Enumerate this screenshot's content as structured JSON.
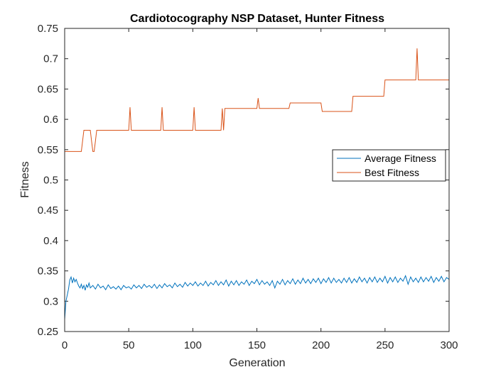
{
  "chart_data": {
    "type": "line",
    "title": "Cardiotocography NSP Dataset, Hunter Fitness",
    "xlabel": "Generation",
    "ylabel": "Fitness",
    "xlim": [
      0,
      300
    ],
    "ylim": [
      0.25,
      0.75
    ],
    "xticks": [
      "0",
      "50",
      "100",
      "150",
      "200",
      "250",
      "300"
    ],
    "yticks": [
      "0.25",
      "0.3",
      "0.35",
      "0.4",
      "0.45",
      "0.5",
      "0.55",
      "0.6",
      "0.65",
      "0.7",
      "0.75"
    ],
    "grid": false,
    "legend_position": "right",
    "series": [
      {
        "name": "Average Fitness",
        "color": "#0072BD",
        "points": [
          [
            0,
            0.27
          ],
          [
            1,
            0.3
          ],
          [
            2,
            0.31
          ],
          [
            3,
            0.32
          ],
          [
            4,
            0.335
          ],
          [
            5,
            0.34
          ],
          [
            6,
            0.33
          ],
          [
            7,
            0.338
          ],
          [
            8,
            0.332
          ],
          [
            9,
            0.336
          ],
          [
            10,
            0.33
          ],
          [
            11,
            0.325
          ],
          [
            12,
            0.322
          ],
          [
            13,
            0.328
          ],
          [
            14,
            0.321
          ],
          [
            15,
            0.326
          ],
          [
            16,
            0.318
          ],
          [
            17,
            0.327
          ],
          [
            18,
            0.323
          ],
          [
            19,
            0.33
          ],
          [
            20,
            0.322
          ],
          [
            22,
            0.326
          ],
          [
            24,
            0.32
          ],
          [
            26,
            0.328
          ],
          [
            28,
            0.322
          ],
          [
            30,
            0.325
          ],
          [
            32,
            0.319
          ],
          [
            34,
            0.327
          ],
          [
            36,
            0.321
          ],
          [
            38,
            0.324
          ],
          [
            40,
            0.32
          ],
          [
            42,
            0.325
          ],
          [
            44,
            0.319
          ],
          [
            46,
            0.326
          ],
          [
            48,
            0.322
          ],
          [
            50,
            0.324
          ],
          [
            52,
            0.32
          ],
          [
            54,
            0.327
          ],
          [
            56,
            0.322
          ],
          [
            58,
            0.326
          ],
          [
            60,
            0.321
          ],
          [
            62,
            0.328
          ],
          [
            64,
            0.323
          ],
          [
            66,
            0.326
          ],
          [
            68,
            0.322
          ],
          [
            70,
            0.328
          ],
          [
            72,
            0.321
          ],
          [
            74,
            0.327
          ],
          [
            76,
            0.322
          ],
          [
            78,
            0.329
          ],
          [
            80,
            0.324
          ],
          [
            82,
            0.327
          ],
          [
            84,
            0.322
          ],
          [
            86,
            0.33
          ],
          [
            88,
            0.324
          ],
          [
            90,
            0.328
          ],
          [
            92,
            0.323
          ],
          [
            94,
            0.331
          ],
          [
            96,
            0.325
          ],
          [
            98,
            0.33
          ],
          [
            100,
            0.326
          ],
          [
            102,
            0.332
          ],
          [
            104,
            0.325
          ],
          [
            106,
            0.33
          ],
          [
            108,
            0.326
          ],
          [
            110,
            0.333
          ],
          [
            112,
            0.325
          ],
          [
            114,
            0.331
          ],
          [
            116,
            0.327
          ],
          [
            118,
            0.334
          ],
          [
            120,
            0.326
          ],
          [
            122,
            0.332
          ],
          [
            124,
            0.327
          ],
          [
            126,
            0.335
          ],
          [
            128,
            0.325
          ],
          [
            130,
            0.333
          ],
          [
            132,
            0.327
          ],
          [
            134,
            0.334
          ],
          [
            136,
            0.326
          ],
          [
            138,
            0.332
          ],
          [
            140,
            0.328
          ],
          [
            142,
            0.335
          ],
          [
            144,
            0.326
          ],
          [
            146,
            0.333
          ],
          [
            148,
            0.329
          ],
          [
            150,
            0.336
          ],
          [
            152,
            0.327
          ],
          [
            154,
            0.334
          ],
          [
            156,
            0.328
          ],
          [
            158,
            0.332
          ],
          [
            160,
            0.326
          ],
          [
            162,
            0.334
          ],
          [
            164,
            0.322
          ],
          [
            166,
            0.333
          ],
          [
            168,
            0.328
          ],
          [
            170,
            0.336
          ],
          [
            172,
            0.327
          ],
          [
            174,
            0.334
          ],
          [
            176,
            0.329
          ],
          [
            178,
            0.337
          ],
          [
            180,
            0.328
          ],
          [
            182,
            0.335
          ],
          [
            184,
            0.329
          ],
          [
            186,
            0.338
          ],
          [
            188,
            0.33
          ],
          [
            190,
            0.336
          ],
          [
            192,
            0.329
          ],
          [
            194,
            0.337
          ],
          [
            196,
            0.331
          ],
          [
            198,
            0.338
          ],
          [
            200,
            0.329
          ],
          [
            202,
            0.337
          ],
          [
            204,
            0.331
          ],
          [
            206,
            0.339
          ],
          [
            208,
            0.33
          ],
          [
            210,
            0.338
          ],
          [
            212,
            0.331
          ],
          [
            214,
            0.336
          ],
          [
            216,
            0.33
          ],
          [
            218,
            0.338
          ],
          [
            220,
            0.331
          ],
          [
            222,
            0.339
          ],
          [
            224,
            0.33
          ],
          [
            226,
            0.337
          ],
          [
            228,
            0.331
          ],
          [
            230,
            0.34
          ],
          [
            232,
            0.332
          ],
          [
            234,
            0.338
          ],
          [
            236,
            0.33
          ],
          [
            238,
            0.339
          ],
          [
            240,
            0.332
          ],
          [
            242,
            0.34
          ],
          [
            244,
            0.331
          ],
          [
            246,
            0.338
          ],
          [
            248,
            0.332
          ],
          [
            250,
            0.341
          ],
          [
            252,
            0.33
          ],
          [
            254,
            0.339
          ],
          [
            256,
            0.332
          ],
          [
            258,
            0.34
          ],
          [
            260,
            0.331
          ],
          [
            262,
            0.338
          ],
          [
            264,
            0.333
          ],
          [
            266,
            0.342
          ],
          [
            268,
            0.328
          ],
          [
            270,
            0.34
          ],
          [
            272,
            0.332
          ],
          [
            274,
            0.338
          ],
          [
            276,
            0.331
          ],
          [
            278,
            0.34
          ],
          [
            280,
            0.332
          ],
          [
            282,
            0.339
          ],
          [
            284,
            0.333
          ],
          [
            286,
            0.341
          ],
          [
            288,
            0.331
          ],
          [
            290,
            0.339
          ],
          [
            292,
            0.333
          ],
          [
            294,
            0.341
          ],
          [
            296,
            0.332
          ],
          [
            298,
            0.339
          ],
          [
            300,
            0.336
          ]
        ]
      },
      {
        "name": "Best Fitness",
        "color": "#D95319",
        "points": [
          [
            0,
            0.547
          ],
          [
            13,
            0.547
          ],
          [
            15,
            0.582
          ],
          [
            20,
            0.582
          ],
          [
            21,
            0.564
          ],
          [
            22,
            0.547
          ],
          [
            23,
            0.547
          ],
          [
            24,
            0.564
          ],
          [
            25,
            0.582
          ],
          [
            50,
            0.582
          ],
          [
            51,
            0.62
          ],
          [
            52,
            0.582
          ],
          [
            75,
            0.582
          ],
          [
            76,
            0.62
          ],
          [
            77,
            0.582
          ],
          [
            100,
            0.582
          ],
          [
            101,
            0.62
          ],
          [
            102,
            0.582
          ],
          [
            122,
            0.582
          ],
          [
            123,
            0.618
          ],
          [
            124,
            0.582
          ],
          [
            125,
            0.618
          ],
          [
            150,
            0.618
          ],
          [
            151,
            0.635
          ],
          [
            152,
            0.618
          ],
          [
            175,
            0.618
          ],
          [
            176,
            0.627
          ],
          [
            200,
            0.627
          ],
          [
            201,
            0.613
          ],
          [
            224,
            0.613
          ],
          [
            225,
            0.638
          ],
          [
            249,
            0.638
          ],
          [
            250,
            0.665
          ],
          [
            274,
            0.665
          ],
          [
            275,
            0.717
          ],
          [
            276,
            0.665
          ],
          [
            300,
            0.665
          ]
        ]
      }
    ]
  }
}
